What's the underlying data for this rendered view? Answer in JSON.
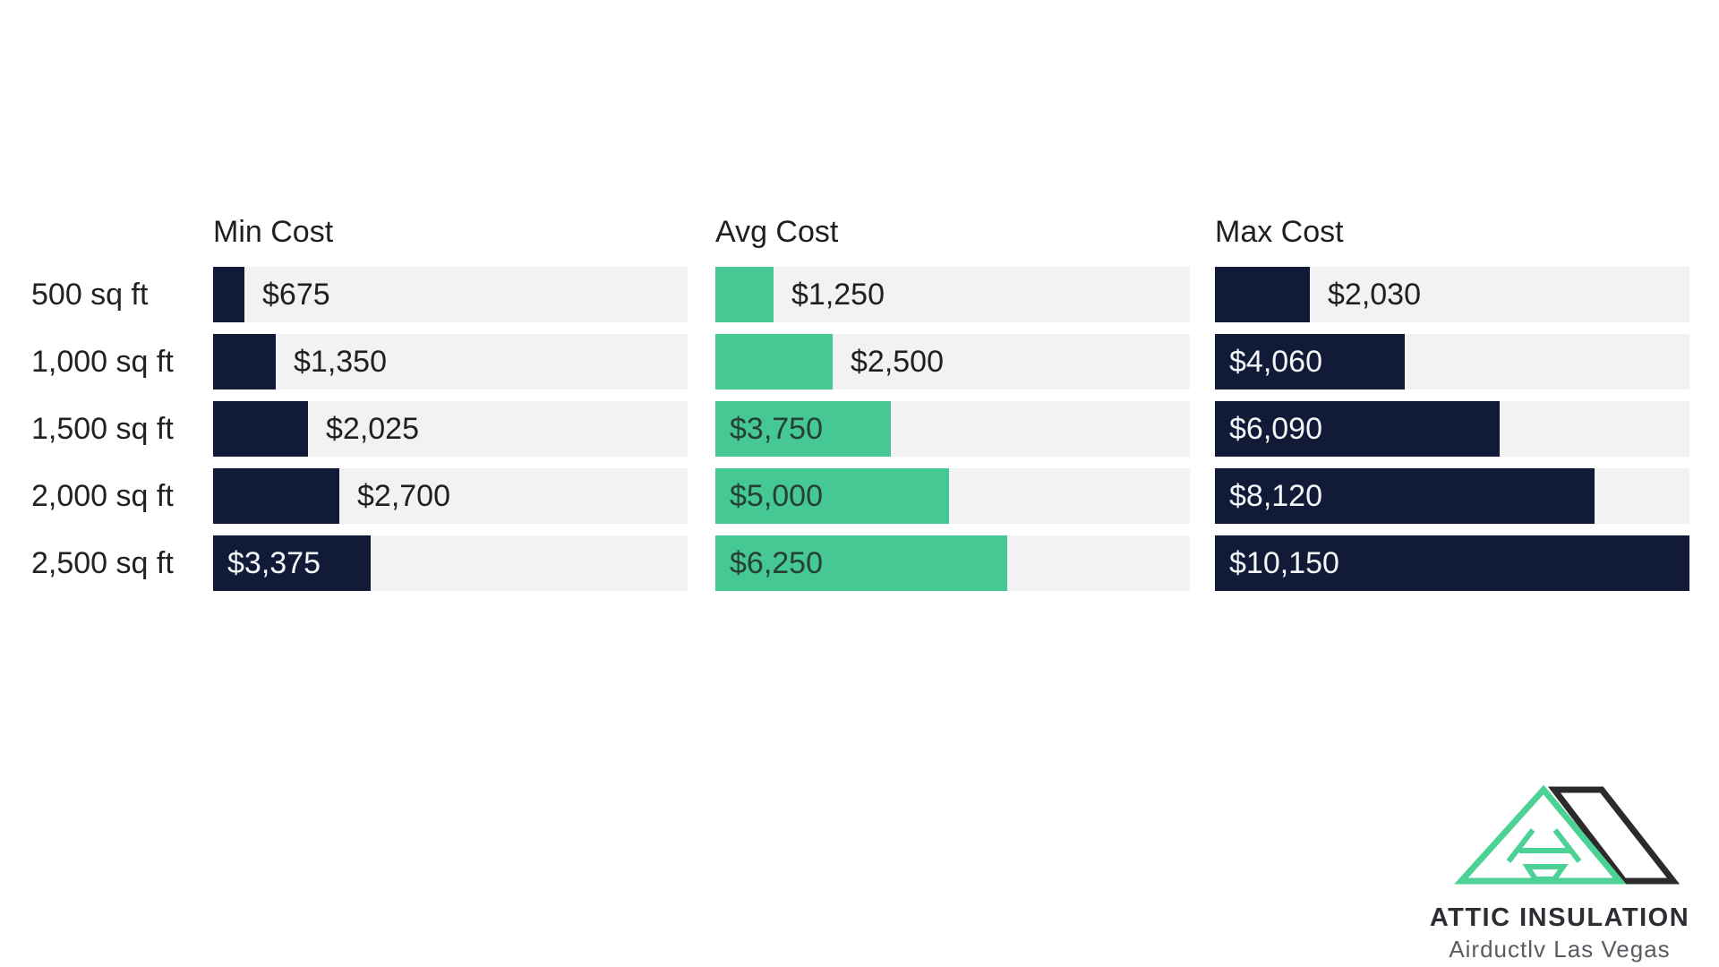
{
  "chart_data": {
    "type": "bar",
    "orientation": "horizontal",
    "title": "",
    "categories": [
      "500 sq ft",
      "1,000 sq ft",
      "1,500 sq ft",
      "2,000 sq ft",
      "2,500 sq ft"
    ],
    "series": [
      {
        "name": "Min Cost",
        "values": [
          675,
          1350,
          2025,
          2700,
          3375
        ],
        "labels": [
          "$675",
          "$1,350",
          "$2,025",
          "$2,700",
          "$3,375"
        ],
        "bar_color": "#111b38",
        "inside_label_color": "#f4f6f8"
      },
      {
        "name": "Avg Cost",
        "values": [
          1250,
          2500,
          3750,
          5000,
          6250
        ],
        "labels": [
          "$1,250",
          "$2,500",
          "$3,750",
          "$5,000",
          "$6,250"
        ],
        "bar_color": "#45c893",
        "inside_label_color": "#264039"
      },
      {
        "name": "Max Cost",
        "values": [
          2030,
          4060,
          6090,
          8120,
          10150
        ],
        "labels": [
          "$2,030",
          "$4,060",
          "$6,090",
          "$8,120",
          "$10,150"
        ],
        "bar_color": "#111b38",
        "inside_label_color": "#f4f6f8"
      }
    ],
    "value_axis_max": 10150,
    "track_color": "#f2f2f2",
    "outside_label_color": "#1f1f1f",
    "header_text_color": "#1f1f1f",
    "category_text_color": "#222222",
    "grid": false,
    "legend_position": "series names shown as column headers"
  },
  "branding": {
    "name": "ATTIC INSULATION",
    "tagline": "Airductlv Las Vegas",
    "mark_green": "#4cd295",
    "mark_dark": "#2b2b2b",
    "name_color": "#2b2e33",
    "tagline_color": "#585c61"
  }
}
